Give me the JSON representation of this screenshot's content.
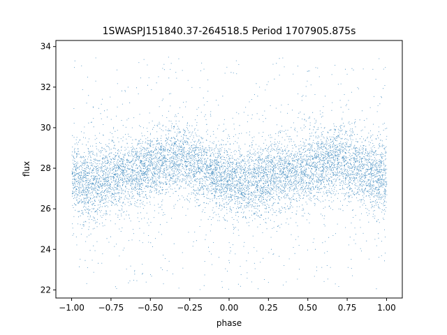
{
  "chart_data": {
    "type": "scatter",
    "title": "1SWASPJ151840.37-264518.5 Period 1707905.875s",
    "xlabel": "phase",
    "ylabel": "flux",
    "xlim": [
      -1.1,
      1.1
    ],
    "ylim": [
      21.6,
      34.3
    ],
    "xticks": [
      -1.0,
      -0.75,
      -0.5,
      -0.25,
      0.0,
      0.25,
      0.5,
      0.75,
      1.0
    ],
    "xtick_labels": [
      "−1.00",
      "−0.75",
      "−0.50",
      "−0.25",
      "0.00",
      "0.25",
      "0.50",
      "0.75",
      "1.00"
    ],
    "yticks": [
      22,
      24,
      26,
      28,
      30,
      32,
      34
    ],
    "ytick_labels": [
      "22",
      "24",
      "26",
      "28",
      "30",
      "32",
      "34"
    ],
    "grid": false,
    "point_color": "#1f77b4",
    "phase_range": [
      -1.0,
      1.0
    ],
    "flux_profile": {
      "phase": [
        0.0,
        0.1,
        0.2,
        0.3,
        0.4,
        0.5,
        0.6,
        0.7,
        0.8,
        0.9,
        1.0
      ],
      "mean_flux": [
        27.5,
        27.2,
        27.5,
        27.7,
        27.8,
        28.0,
        28.3,
        28.5,
        28.1,
        27.7,
        27.6
      ]
    },
    "flux_typical_range": [
      25.5,
      30.5
    ],
    "flux_extreme_range": [
      22.0,
      33.5
    ]
  }
}
